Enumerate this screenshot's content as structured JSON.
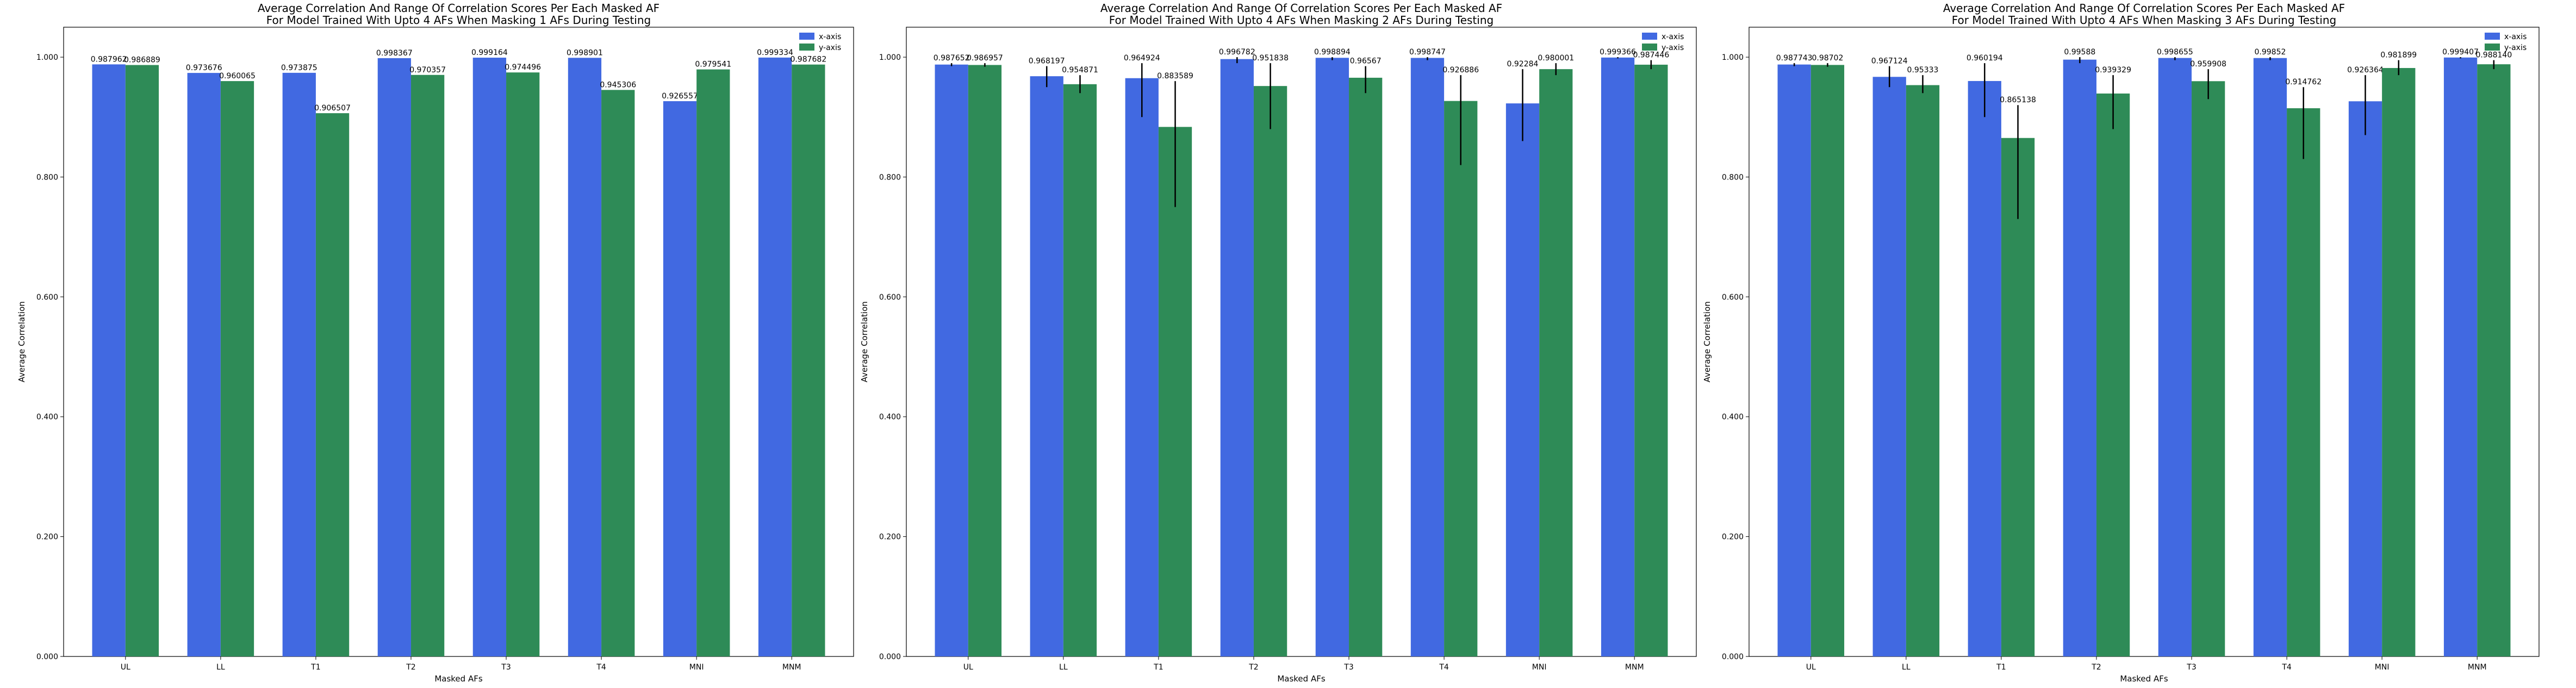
{
  "colors": {
    "x_axis": "#4169E1",
    "y_axis": "#2E8B57",
    "error": "#000000"
  },
  "chart_data": [
    {
      "type": "bar",
      "title": "Average Correlation And Range Of Correlation Scores Per Each Masked AF",
      "subtitle": "For Model Trained With Upto 4 AFs When Masking 1 AFs During Testing",
      "xlabel": "Masked AFs",
      "ylabel": "Average Correlation",
      "ylim": [
        0,
        1.05
      ],
      "yticks": [
        "0.000",
        "0.200",
        "0.400",
        "0.600",
        "0.800",
        "1.000"
      ],
      "categories": [
        "UL",
        "LL",
        "T1",
        "T2",
        "T3",
        "T4",
        "MNI",
        "MNM"
      ],
      "legend": "top-right",
      "series": [
        {
          "name": "x-axis",
          "values": [
            0.987962,
            0.973676,
            0.973875,
            0.998367,
            0.999164,
            0.998901,
            0.926557,
            0.999334
          ],
          "labels": [
            "0.987962",
            "0.973676",
            "0.973875",
            "0.998367",
            "0.999164",
            "0.998901",
            "0.926557",
            "0.999334"
          ],
          "errors": [
            null,
            null,
            null,
            null,
            null,
            null,
            null,
            null
          ]
        },
        {
          "name": "y-axis",
          "values": [
            0.986889,
            0.960065,
            0.906507,
            0.970357,
            0.974496,
            0.945306,
            0.979541,
            0.987682
          ],
          "labels": [
            "0.986889",
            "0.960065",
            "0.906507",
            "0.970357",
            "0.974496",
            "0.945306",
            "0.979541",
            "0.987682"
          ],
          "errors": [
            null,
            null,
            null,
            null,
            null,
            null,
            null,
            null
          ]
        }
      ]
    },
    {
      "type": "bar",
      "title": "Average Correlation And Range Of Correlation Scores Per Each Masked AF",
      "subtitle": "For Model Trained With Upto 4 AFs When Masking 2 AFs During Testing",
      "xlabel": "Masked AFs",
      "ylabel": "Average Correlation",
      "ylim": [
        0,
        1.05
      ],
      "yticks": [
        "0.000",
        "0.200",
        "0.400",
        "0.600",
        "0.800",
        "1.000"
      ],
      "categories": [
        "UL",
        "LL",
        "T1",
        "T2",
        "T3",
        "T4",
        "MNI",
        "MNM"
      ],
      "legend": "top-right",
      "series": [
        {
          "name": "x-axis",
          "values": [
            0.987652,
            0.968197,
            0.964924,
            0.996782,
            0.998894,
            0.998747,
            0.92284,
            0.999366
          ],
          "labels": [
            "0.987652",
            "0.968197",
            "0.964924",
            "0.996782",
            "0.998894",
            "0.998747",
            "0.92284",
            "0.999366"
          ],
          "errors": [
            [
              0.985,
              0.99
            ],
            [
              0.95,
              0.985
            ],
            [
              0.9,
              0.99
            ],
            [
              0.99,
              1.0
            ],
            [
              0.995,
              1.0
            ],
            [
              0.995,
              1.0
            ],
            [
              0.86,
              0.98
            ],
            [
              0.998,
              1.0
            ]
          ]
        },
        {
          "name": "y-axis",
          "values": [
            0.986957,
            0.954871,
            0.883589,
            0.951838,
            0.96567,
            0.926886,
            0.980001,
            0.987446
          ],
          "labels": [
            "0.986957",
            "0.954871",
            "0.883589",
            "0.951838",
            "0.96567",
            "0.926886",
            "0.980001",
            "0.987446"
          ],
          "errors": [
            [
              0.984,
              0.99
            ],
            [
              0.94,
              0.97
            ],
            [
              0.75,
              0.96
            ],
            [
              0.88,
              0.99
            ],
            [
              0.94,
              0.985
            ],
            [
              0.82,
              0.97
            ],
            [
              0.97,
              0.99
            ],
            [
              0.98,
              0.995
            ]
          ]
        }
      ]
    },
    {
      "type": "bar",
      "title": "Average Correlation And Range Of Correlation Scores Per Each Masked AF",
      "subtitle": "For Model Trained With Upto 4 AFs When Masking 3 AFs During Testing",
      "xlabel": "Masked AFs",
      "ylabel": "Average Correlation",
      "ylim": [
        0,
        1.05
      ],
      "yticks": [
        "0.000",
        "0.200",
        "0.400",
        "0.600",
        "0.800",
        "1.000"
      ],
      "categories": [
        "UL",
        "LL",
        "T1",
        "T2",
        "T3",
        "T4",
        "MNI",
        "MNM"
      ],
      "legend": "top-right",
      "series": [
        {
          "name": "x-axis",
          "values": [
            0.987743,
            0.967124,
            0.960194,
            0.99588,
            0.998655,
            0.99852,
            0.926364,
            0.999407
          ],
          "labels": [
            "0.987743",
            "0.967124",
            "0.960194",
            "0.99588",
            "0.998655",
            "0.99852",
            "0.926364",
            "0.999407"
          ],
          "errors": [
            [
              0.985,
              0.99
            ],
            [
              0.95,
              0.985
            ],
            [
              0.9,
              0.99
            ],
            [
              0.99,
              1.0
            ],
            [
              0.995,
              1.0
            ],
            [
              0.995,
              1.0
            ],
            [
              0.87,
              0.97
            ],
            [
              0.998,
              1.0
            ]
          ]
        },
        {
          "name": "y-axis",
          "values": [
            0.98702,
            0.95333,
            0.865138,
            0.939329,
            0.959908,
            0.914762,
            0.981899,
            0.98814
          ],
          "labels": [
            "0.98702",
            "0.95333",
            "0.865138",
            "0.939329",
            "0.959908",
            "0.914762",
            "0.981899",
            "0.988140"
          ],
          "errors": [
            [
              0.984,
              0.99
            ],
            [
              0.94,
              0.97
            ],
            [
              0.73,
              0.92
            ],
            [
              0.88,
              0.97
            ],
            [
              0.93,
              0.98
            ],
            [
              0.83,
              0.95
            ],
            [
              0.97,
              0.995
            ],
            [
              0.98,
              0.995
            ]
          ]
        }
      ]
    }
  ]
}
